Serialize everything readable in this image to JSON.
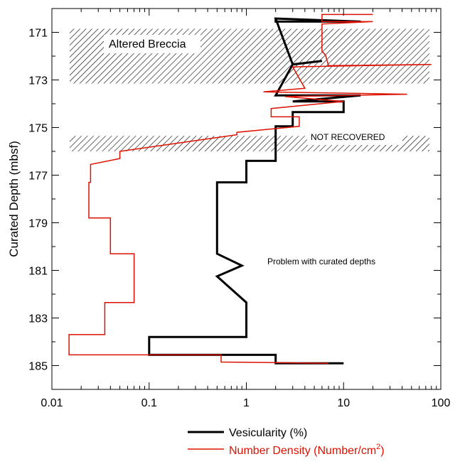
{
  "chart_data": {
    "type": "line",
    "xscale": "log",
    "xlim": [
      0.01,
      100
    ],
    "ylim": [
      170,
      186
    ],
    "y_inverted": true,
    "ylabel": "Curated Depth (mbsf)",
    "xlabel": "",
    "x_ticks": [
      0.01,
      0.1,
      1,
      10,
      100
    ],
    "x_tick_labels": [
      "0.01",
      "0.1",
      "1",
      "10",
      "100"
    ],
    "y_ticks": [
      171,
      173,
      175,
      177,
      179,
      181,
      183,
      185
    ],
    "y_tick_labels": [
      "171",
      "173",
      "175",
      "177",
      "179",
      "181",
      "183",
      "185"
    ],
    "grid": false,
    "legend_position": "bottom-center",
    "series": [
      {
        "name": "Vesicularity (%)",
        "color": "#000000",
        "points": [
          [
            2,
            170.42
          ],
          [
            2,
            170.55
          ],
          [
            15,
            170.55
          ],
          [
            2,
            170.42
          ],
          [
            3,
            172.35
          ],
          [
            6,
            172.2
          ],
          [
            3,
            172.35
          ],
          [
            2,
            173.65
          ],
          [
            15,
            173.65
          ],
          [
            3,
            173.9
          ],
          [
            10,
            173.9
          ],
          [
            10,
            174.35
          ],
          [
            3,
            174.35
          ],
          [
            3,
            174.95
          ],
          [
            2,
            174.95
          ],
          [
            2,
            176.4
          ],
          [
            1,
            176.4
          ],
          [
            1,
            177.3
          ],
          [
            0.5,
            177.3
          ],
          [
            0.5,
            180.3
          ],
          [
            0.9,
            180.8
          ],
          [
            0.5,
            181.25
          ],
          [
            1,
            182.35
          ],
          [
            1,
            183.8
          ],
          [
            0.1,
            183.8
          ],
          [
            0.1,
            184.55
          ],
          [
            2,
            184.55
          ],
          [
            2,
            184.9
          ],
          [
            10,
            184.9
          ]
        ]
      },
      {
        "name": "Number Density (Number/cm",
        "name_superscript": "2",
        "name_suffix": ")",
        "color": "#dd1100",
        "points": [
          [
            20,
            170.25
          ],
          [
            6,
            170.25
          ],
          [
            6,
            170.55
          ],
          [
            20,
            170.55
          ],
          [
            6,
            170.65
          ],
          [
            6,
            171.8
          ],
          [
            6.5,
            171.95
          ],
          [
            7,
            172.4
          ],
          [
            80,
            172.35
          ],
          [
            3,
            172.45
          ],
          [
            4,
            173.35
          ],
          [
            1.5,
            173.5
          ],
          [
            45,
            173.6
          ],
          [
            2.5,
            173.7
          ],
          [
            10,
            173.9
          ],
          [
            1.8,
            174.2
          ],
          [
            1.8,
            174.55
          ],
          [
            3.5,
            174.55
          ],
          [
            3.5,
            174.95
          ],
          [
            0.8,
            175.2
          ],
          [
            0.8,
            175.3
          ],
          [
            0.05,
            176.0
          ],
          [
            0.05,
            176.3
          ],
          [
            0.025,
            176.55
          ],
          [
            0.025,
            177.3
          ],
          [
            0.024,
            177.3
          ],
          [
            0.024,
            178.8
          ],
          [
            0.04,
            178.8
          ],
          [
            0.04,
            180.3
          ],
          [
            0.07,
            180.3
          ],
          [
            0.07,
            182.35
          ],
          [
            0.035,
            182.35
          ],
          [
            0.035,
            183.7
          ],
          [
            0.015,
            183.7
          ],
          [
            0.015,
            184.55
          ],
          [
            0.55,
            184.55
          ],
          [
            0.55,
            184.85
          ],
          [
            7,
            184.9
          ]
        ]
      }
    ],
    "shaded_intervals": [
      {
        "label": "Altered Breccia",
        "depth_top": 170.85,
        "depth_bottom": 173.15
      },
      {
        "label": "NOT RECOVERED",
        "depth_top": 175.35,
        "depth_bottom": 176.0
      }
    ],
    "annotations": [
      {
        "text": "Problem with curated depths",
        "x": 2,
        "depth": 180.8
      }
    ]
  }
}
